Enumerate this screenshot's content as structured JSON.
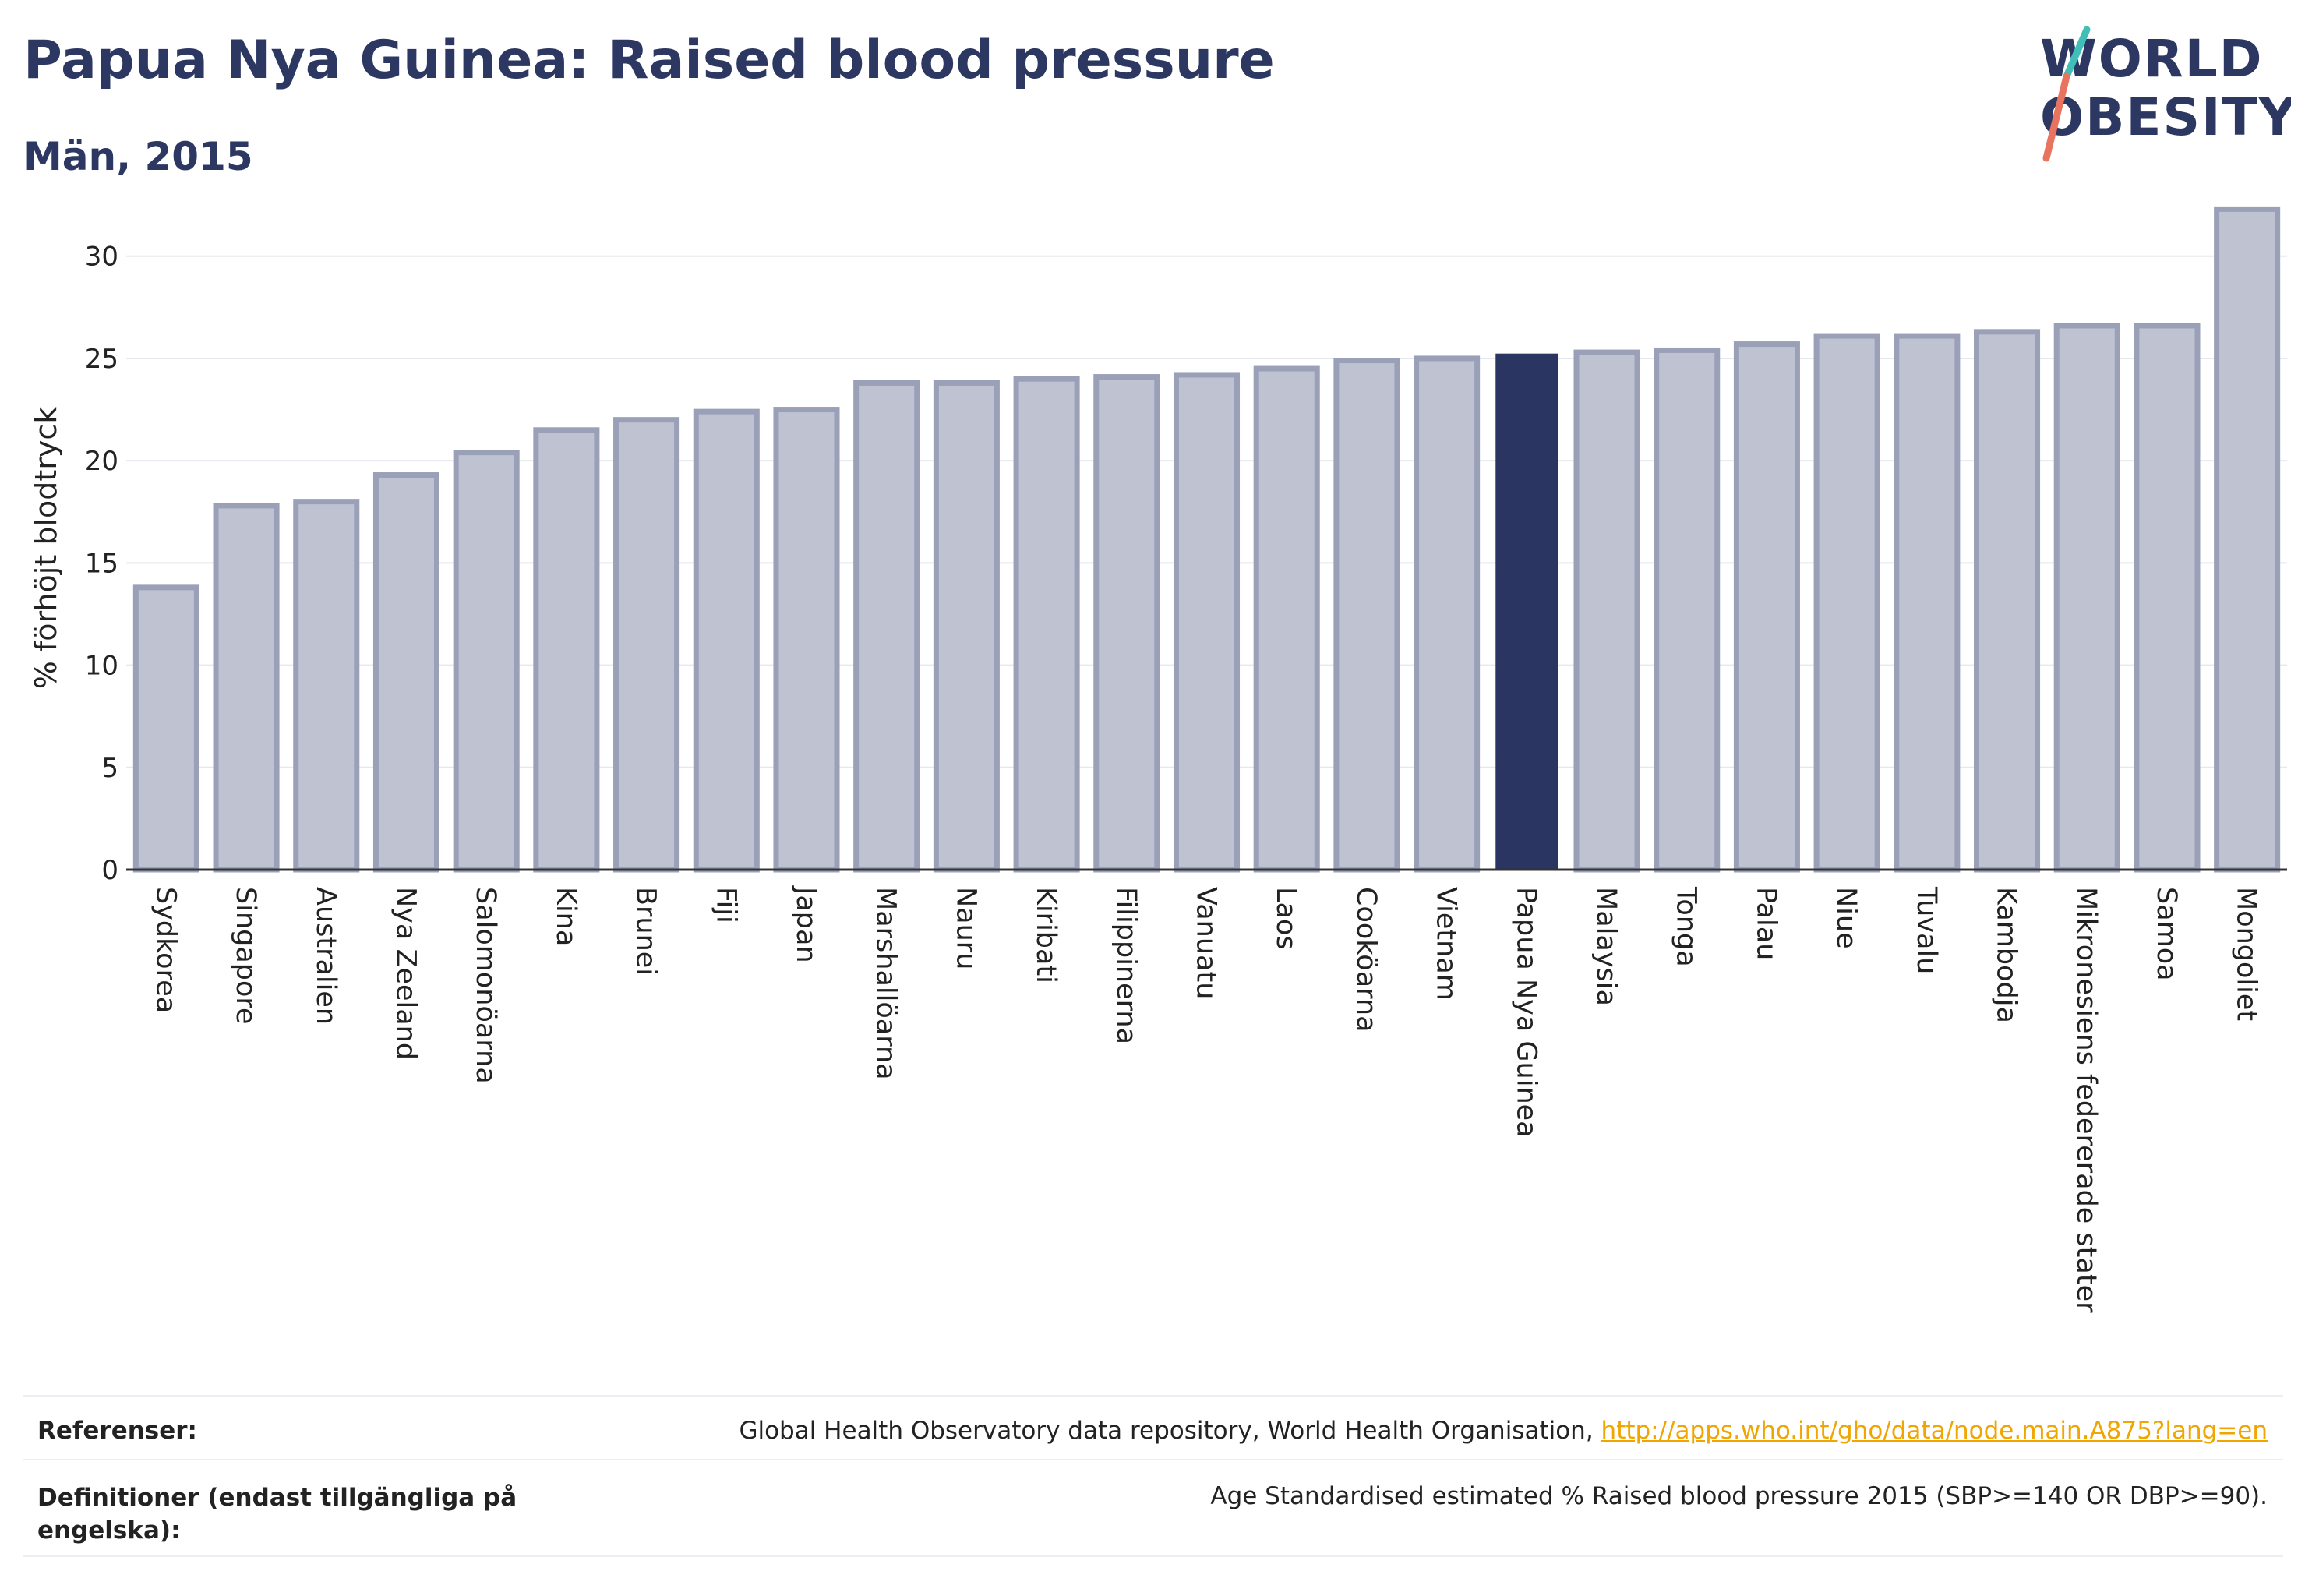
{
  "header": {
    "title": "Papua Nya Guinea: Raised blood pressure",
    "subtitle": "Män, 2015"
  },
  "logo": {
    "line1": "WORLD",
    "line2": "OBESITY"
  },
  "chart_data": {
    "type": "bar",
    "ylabel": "% förhöjt blodtryck",
    "xlabel": "",
    "ylim": [
      0,
      33
    ],
    "yticks": [
      0,
      5,
      10,
      15,
      20,
      25,
      30
    ],
    "grid": true,
    "highlight": "Papua Nya Guinea",
    "colors": {
      "bar": "#bfc2d0",
      "bar_edge": "#9aa0b8",
      "highlight": "#2b3561",
      "grid": "#e6e8ee"
    },
    "categories": [
      "Sydkorea",
      "Singapore",
      "Australien",
      "Nya Zeeland",
      "Salomonöarna",
      "Kina",
      "Brunei",
      "Fiji",
      "Japan",
      "Marshallöarna",
      "Nauru",
      "Kiribati",
      "Filippinerna",
      "Vanuatu",
      "Laos",
      "Cooköarna",
      "Vietnam",
      "Papua Nya Guinea",
      "Malaysia",
      "Tonga",
      "Palau",
      "Niue",
      "Tuvalu",
      "Kambodja",
      "Mikronesiens federerade stater",
      "Samoa",
      "Mongoliet"
    ],
    "values": [
      13.8,
      17.8,
      18.0,
      19.3,
      20.4,
      21.5,
      22.0,
      22.4,
      22.5,
      23.8,
      23.8,
      24.0,
      24.1,
      24.2,
      24.5,
      24.9,
      25.0,
      25.2,
      25.3,
      25.4,
      25.7,
      26.1,
      26.1,
      26.3,
      26.6,
      26.6,
      32.3
    ]
  },
  "footer": {
    "references_label": "Referenser:",
    "references_text": "Global Health Observatory data repository, World Health Organisation, ",
    "references_link": "http://apps.who.int/gho/data/node.main.A875?lang=en",
    "definitions_label": "Definitioner (endast tillgängliga på engelska):",
    "definitions_text": "Age Standardised estimated % Raised blood pressure 2015 (SBP>=140 OR DBP>=90)."
  }
}
